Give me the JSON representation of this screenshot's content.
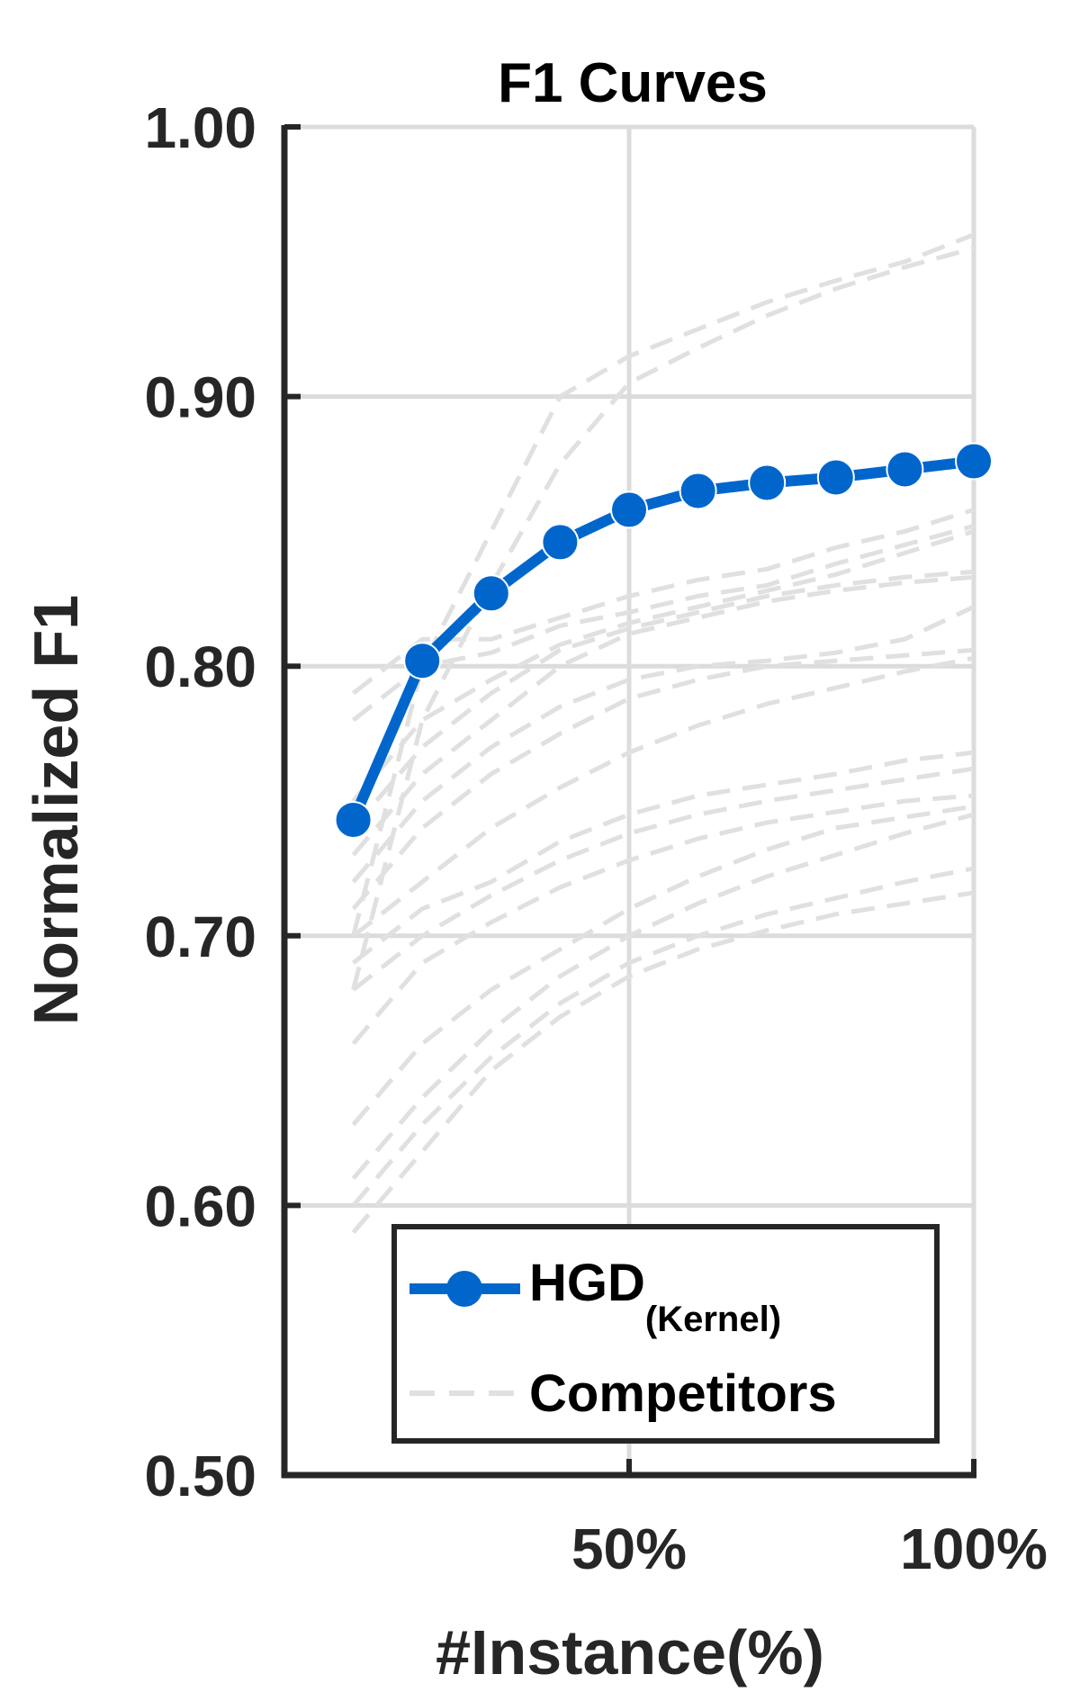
{
  "chart_data": {
    "type": "line",
    "title": "F1 Curves",
    "xlabel": "#Instance(%)",
    "ylabel": "Normalized F1",
    "xlim": [
      10,
      100
    ],
    "ylim": [
      0.5,
      1.0
    ],
    "xticks": [
      {
        "value": 50,
        "label": "50%"
      },
      {
        "value": 100,
        "label": "100%"
      }
    ],
    "yticks": [
      {
        "value": 0.5,
        "label": "0.50"
      },
      {
        "value": 0.6,
        "label": "0.60"
      },
      {
        "value": 0.7,
        "label": "0.70"
      },
      {
        "value": 0.8,
        "label": "0.80"
      },
      {
        "value": 0.9,
        "label": "0.90"
      },
      {
        "value": 1.0,
        "label": "1.00"
      }
    ],
    "grid": true,
    "legend_position": "bottom-right",
    "x": [
      10,
      20,
      30,
      40,
      50,
      60,
      70,
      80,
      90,
      100
    ],
    "series": [
      {
        "name": "HGD",
        "name_sub": "(Kernel)",
        "color": "#0066CC",
        "style": "solid-marker",
        "values": [
          0.743,
          0.802,
          0.827,
          0.846,
          0.858,
          0.865,
          0.868,
          0.87,
          0.873,
          0.876
        ]
      },
      {
        "name": "Competitors",
        "color": "#E0E0E0",
        "style": "dashed",
        "lines": [
          [
            0.7,
            0.8,
            0.85,
            0.9,
            0.915,
            0.925,
            0.935,
            0.943,
            0.95,
            0.96
          ],
          [
            0.68,
            0.78,
            0.83,
            0.875,
            0.905,
            0.918,
            0.93,
            0.94,
            0.948,
            0.955
          ],
          [
            0.79,
            0.81,
            0.81,
            0.818,
            0.826,
            0.832,
            0.836,
            0.844,
            0.85,
            0.858
          ],
          [
            0.78,
            0.8,
            0.805,
            0.815,
            0.82,
            0.826,
            0.83,
            0.838,
            0.845,
            0.852
          ],
          [
            0.75,
            0.78,
            0.795,
            0.808,
            0.816,
            0.822,
            0.828,
            0.834,
            0.842,
            0.85
          ],
          [
            0.74,
            0.77,
            0.79,
            0.806,
            0.814,
            0.82,
            0.826,
            0.83,
            0.833,
            0.835
          ],
          [
            0.73,
            0.76,
            0.78,
            0.8,
            0.812,
            0.818,
            0.824,
            0.828,
            0.831,
            0.833
          ],
          [
            0.72,
            0.75,
            0.77,
            0.785,
            0.795,
            0.8,
            0.802,
            0.805,
            0.81,
            0.822
          ],
          [
            0.71,
            0.74,
            0.76,
            0.775,
            0.788,
            0.795,
            0.8,
            0.802,
            0.804,
            0.806
          ],
          [
            0.7,
            0.72,
            0.74,
            0.755,
            0.768,
            0.778,
            0.786,
            0.792,
            0.798,
            0.803
          ],
          [
            0.69,
            0.71,
            0.72,
            0.735,
            0.745,
            0.752,
            0.756,
            0.76,
            0.765,
            0.768
          ],
          [
            0.68,
            0.7,
            0.715,
            0.728,
            0.738,
            0.745,
            0.75,
            0.754,
            0.758,
            0.762
          ],
          [
            0.66,
            0.69,
            0.705,
            0.718,
            0.728,
            0.736,
            0.742,
            0.746,
            0.75,
            0.752
          ],
          [
            0.63,
            0.66,
            0.68,
            0.695,
            0.71,
            0.722,
            0.732,
            0.74,
            0.744,
            0.748
          ],
          [
            0.61,
            0.64,
            0.665,
            0.685,
            0.7,
            0.712,
            0.722,
            0.73,
            0.738,
            0.745
          ],
          [
            0.6,
            0.63,
            0.655,
            0.675,
            0.69,
            0.7,
            0.708,
            0.714,
            0.72,
            0.725
          ],
          [
            0.59,
            0.62,
            0.65,
            0.67,
            0.685,
            0.695,
            0.702,
            0.708,
            0.712,
            0.716
          ]
        ]
      }
    ]
  }
}
